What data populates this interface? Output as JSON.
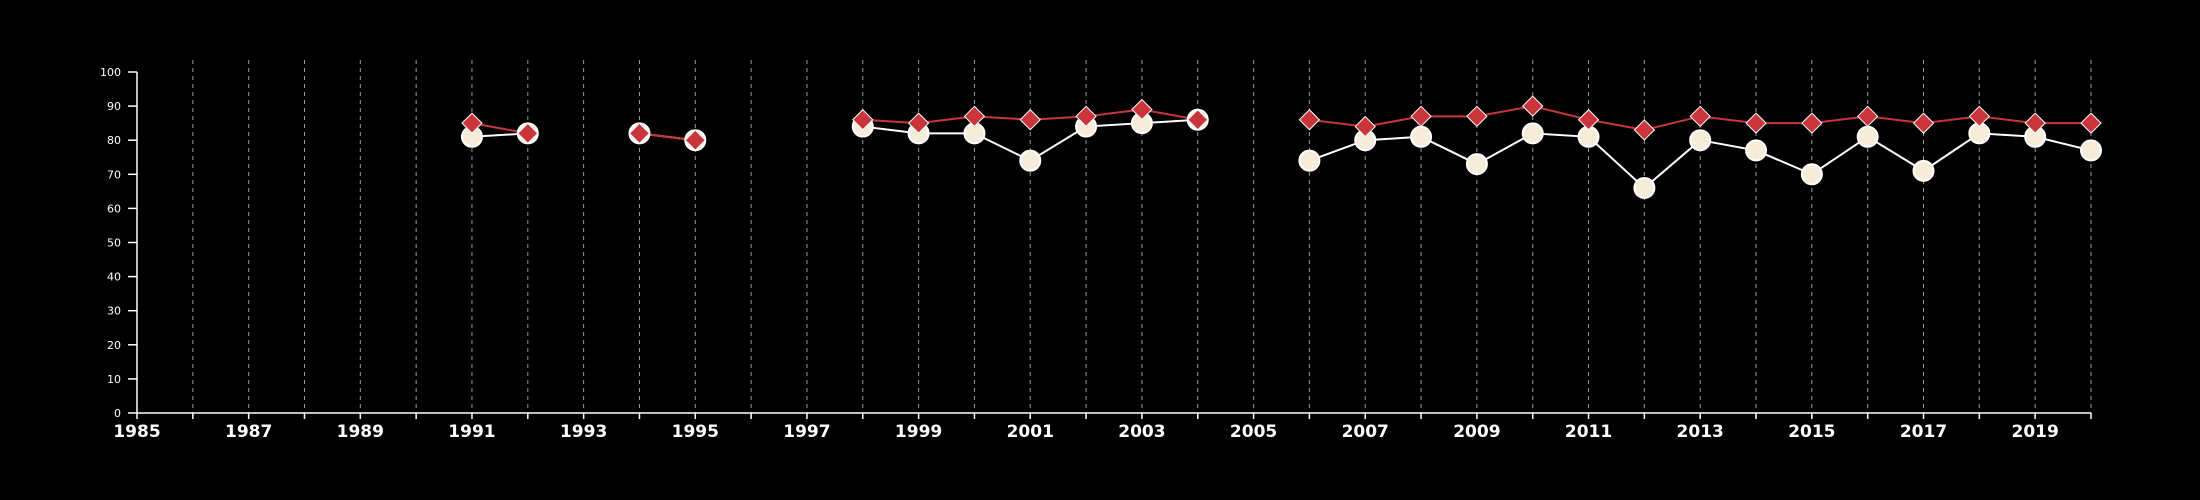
{
  "chart_data": {
    "type": "line",
    "title": "",
    "xlabel": "",
    "ylabel": "",
    "xlim": [
      1985,
      2020
    ],
    "ylim": [
      0,
      100
    ],
    "yticks": [
      0,
      10,
      20,
      30,
      40,
      50,
      60,
      70,
      80,
      90,
      100
    ],
    "xticks_labeled": [
      1985,
      1987,
      1989,
      1991,
      1993,
      1995,
      1997,
      1999,
      2001,
      2003,
      2005,
      2007,
      2009,
      2011,
      2013,
      2015,
      2017,
      2019
    ],
    "grid": "vertical dashed at every year",
    "legend": "none",
    "series": [
      {
        "marker": "circle",
        "color": "#ffffff",
        "fill": "#f7ecd9",
        "segments": [
          [
            [
              1991,
              81
            ],
            [
              1992,
              82
            ]
          ],
          [
            [
              1994,
              82
            ],
            [
              1995,
              80
            ]
          ],
          [
            [
              1998,
              84
            ],
            [
              1999,
              82
            ],
            [
              2000,
              82
            ],
            [
              2001,
              74
            ],
            [
              2002,
              84
            ],
            [
              2003,
              85
            ],
            [
              2004,
              86
            ]
          ],
          [
            [
              2006,
              74
            ],
            [
              2007,
              80
            ],
            [
              2008,
              81
            ],
            [
              2009,
              73
            ],
            [
              2010,
              82
            ],
            [
              2011,
              81
            ],
            [
              2012,
              66
            ],
            [
              2013,
              80
            ],
            [
              2014,
              77
            ],
            [
              2015,
              70
            ],
            [
              2016,
              81
            ],
            [
              2017,
              71
            ],
            [
              2018,
              82
            ],
            [
              2019,
              81
            ],
            [
              2020,
              77
            ]
          ]
        ]
      },
      {
        "marker": "diamond",
        "color": "#c9353a",
        "fill": "#c9353a",
        "segments": [
          [
            [
              1991,
              85
            ],
            [
              1992,
              82
            ]
          ],
          [
            [
              1994,
              82
            ],
            [
              1995,
              80
            ]
          ],
          [
            [
              1998,
              86
            ],
            [
              1999,
              85
            ],
            [
              2000,
              87
            ],
            [
              2001,
              86
            ],
            [
              2002,
              87
            ],
            [
              2003,
              89
            ],
            [
              2004,
              86
            ]
          ],
          [
            [
              2006,
              86
            ],
            [
              2007,
              84
            ],
            [
              2008,
              87
            ],
            [
              2009,
              87
            ],
            [
              2010,
              90
            ],
            [
              2011,
              86
            ],
            [
              2012,
              83
            ],
            [
              2013,
              87
            ],
            [
              2014,
              85
            ],
            [
              2015,
              85
            ],
            [
              2016,
              87
            ],
            [
              2017,
              85
            ],
            [
              2018,
              87
            ],
            [
              2019,
              85
            ],
            [
              2020,
              85
            ]
          ]
        ]
      }
    ]
  }
}
